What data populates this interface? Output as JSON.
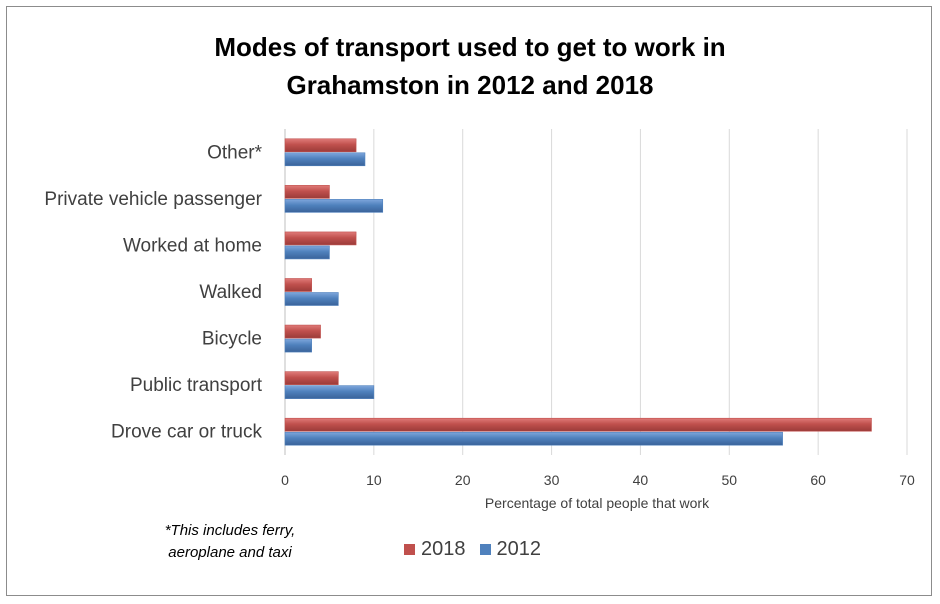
{
  "chart_data": {
    "type": "bar",
    "orientation": "horizontal",
    "title_lines": [
      "Modes of transport used to get to work in",
      "Grahamston in 2012 and 2018"
    ],
    "categories": [
      "Other*",
      "Private vehicle passenger",
      "Worked at home",
      "Walked",
      "Bicycle",
      "Public transport",
      "Drove car or truck"
    ],
    "series": [
      {
        "name": "2018",
        "color": "#c0504d",
        "values": [
          8,
          5,
          8,
          3,
          4,
          6,
          66
        ]
      },
      {
        "name": "2012",
        "color": "#4f81bd",
        "values": [
          9,
          11,
          5,
          6,
          3,
          10,
          56
        ]
      }
    ],
    "xlabel": "Percentage of total people that work",
    "ylabel": "",
    "xlim": [
      0,
      70
    ],
    "xticks": [
      "0",
      "10",
      "20",
      "30",
      "40",
      "50",
      "60",
      "70"
    ],
    "grid": true,
    "legend_position": "bottom"
  },
  "footnote": {
    "line1": "*This includes ferry,",
    "line2": "aeroplane and taxi"
  }
}
